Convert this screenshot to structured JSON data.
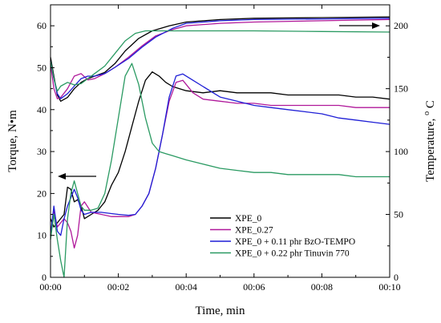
{
  "chart_data": {
    "type": "line",
    "xlabel": "Time, min",
    "ylabel_left": "Torque, N•m",
    "ylabel_right_main": "Temperature, ",
    "ylabel_right_sup": "o",
    "ylabel_right_unit": "C",
    "xlim_min": [
      0,
      10
    ],
    "ylim_left": [
      0,
      65
    ],
    "ylim_right": [
      0,
      216.7
    ],
    "x_tick_values": [
      0,
      2,
      4,
      6,
      8,
      10
    ],
    "x_tick_labels": [
      "00:00",
      "00:02",
      "00:04",
      "00:06",
      "00:08",
      "00:10"
    ],
    "y_left_ticks": [
      0,
      10,
      20,
      30,
      40,
      50,
      60
    ],
    "y_right_ticks": [
      0,
      50,
      100,
      150,
      200
    ],
    "legend_position": "lower-right",
    "series": [
      {
        "name": "XPE_0",
        "color": "#000000",
        "axis": "left",
        "quantity": "torque",
        "points": [
          [
            0,
            14
          ],
          [
            0.1,
            12
          ],
          [
            0.2,
            13
          ],
          [
            0.4,
            15
          ],
          [
            0.5,
            21.5
          ],
          [
            0.6,
            21
          ],
          [
            0.7,
            18
          ],
          [
            0.8,
            18.5
          ],
          [
            0.9,
            17
          ],
          [
            1.0,
            14
          ],
          [
            1.2,
            15
          ],
          [
            1.4,
            16
          ],
          [
            1.6,
            18
          ],
          [
            1.8,
            22
          ],
          [
            2.0,
            25
          ],
          [
            2.2,
            30
          ],
          [
            2.4,
            36
          ],
          [
            2.6,
            42
          ],
          [
            2.8,
            47
          ],
          [
            3.0,
            49
          ],
          [
            3.2,
            48
          ],
          [
            3.4,
            46.5
          ],
          [
            3.6,
            45.5
          ],
          [
            3.8,
            45
          ],
          [
            4.0,
            44.5
          ],
          [
            4.5,
            44
          ],
          [
            5.0,
            44.5
          ],
          [
            5.5,
            44
          ],
          [
            6,
            44
          ],
          [
            6.5,
            44
          ],
          [
            7,
            43.5
          ],
          [
            7.5,
            43.5
          ],
          [
            8,
            43.5
          ],
          [
            8.5,
            43.5
          ],
          [
            9,
            43
          ],
          [
            9.5,
            43
          ],
          [
            10,
            42.5
          ]
        ]
      },
      {
        "name": "XPE_0.27",
        "color": "#b0189a",
        "axis": "left",
        "quantity": "torque",
        "points": [
          [
            0,
            10
          ],
          [
            0.1,
            16
          ],
          [
            0.2,
            12
          ],
          [
            0.3,
            13
          ],
          [
            0.4,
            14
          ],
          [
            0.5,
            13
          ],
          [
            0.6,
            11
          ],
          [
            0.7,
            7
          ],
          [
            0.8,
            10
          ],
          [
            0.9,
            17
          ],
          [
            1.0,
            18
          ],
          [
            1.2,
            15.5
          ],
          [
            1.5,
            15
          ],
          [
            1.8,
            14.5
          ],
          [
            2.0,
            14.5
          ],
          [
            2.3,
            14.5
          ],
          [
            2.5,
            15
          ],
          [
            2.7,
            17
          ],
          [
            2.9,
            20
          ],
          [
            3.1,
            26
          ],
          [
            3.3,
            34
          ],
          [
            3.5,
            42
          ],
          [
            3.7,
            46.5
          ],
          [
            3.9,
            47
          ],
          [
            4.2,
            44
          ],
          [
            4.5,
            42.5
          ],
          [
            5.0,
            42
          ],
          [
            5.5,
            41.5
          ],
          [
            6,
            41.5
          ],
          [
            6.5,
            41
          ],
          [
            7,
            41
          ],
          [
            7.5,
            41
          ],
          [
            8,
            41
          ],
          [
            8.5,
            41
          ],
          [
            9,
            40.5
          ],
          [
            9.5,
            40.5
          ],
          [
            10,
            40.5
          ]
        ]
      },
      {
        "name": "XPE_0 + 0.11 phr BzO-TEMPO",
        "color": "#1f1fd6",
        "axis": "left",
        "quantity": "torque",
        "points": [
          [
            0,
            10
          ],
          [
            0.1,
            17
          ],
          [
            0.2,
            11
          ],
          [
            0.3,
            10
          ],
          [
            0.4,
            14
          ],
          [
            0.5,
            17
          ],
          [
            0.6,
            19
          ],
          [
            0.7,
            21
          ],
          [
            0.8,
            19
          ],
          [
            0.9,
            16
          ],
          [
            1.0,
            15
          ],
          [
            1.2,
            15.5
          ],
          [
            1.5,
            15.5
          ],
          [
            1.8,
            15.2
          ],
          [
            2.0,
            15
          ],
          [
            2.3,
            14.8
          ],
          [
            2.5,
            15
          ],
          [
            2.7,
            17
          ],
          [
            2.9,
            20
          ],
          [
            3.1,
            26
          ],
          [
            3.3,
            34
          ],
          [
            3.5,
            43
          ],
          [
            3.7,
            48
          ],
          [
            3.9,
            48.5
          ],
          [
            4.2,
            47
          ],
          [
            4.5,
            45.5
          ],
          [
            5.0,
            43
          ],
          [
            5.5,
            42
          ],
          [
            6,
            41
          ],
          [
            6.5,
            40.5
          ],
          [
            7,
            40
          ],
          [
            7.5,
            39.5
          ],
          [
            8,
            39
          ],
          [
            8.5,
            38
          ],
          [
            9,
            37.5
          ],
          [
            9.5,
            37
          ],
          [
            10,
            36.5
          ]
        ]
      },
      {
        "name": "XPE_0 + 0.22 phr Tinuvin 770",
        "color": "#2a9a62",
        "axis": "left",
        "quantity": "torque",
        "points": [
          [
            0,
            9
          ],
          [
            0.1,
            15
          ],
          [
            0.2,
            9
          ],
          [
            0.3,
            4
          ],
          [
            0.4,
            0
          ],
          [
            0.5,
            14
          ],
          [
            0.6,
            20
          ],
          [
            0.7,
            23
          ],
          [
            0.8,
            20
          ],
          [
            0.9,
            17
          ],
          [
            1.0,
            16
          ],
          [
            1.2,
            16
          ],
          [
            1.4,
            16.5
          ],
          [
            1.6,
            20
          ],
          [
            1.8,
            28
          ],
          [
            2.0,
            38
          ],
          [
            2.2,
            48
          ],
          [
            2.4,
            51
          ],
          [
            2.6,
            46
          ],
          [
            2.8,
            38
          ],
          [
            3.0,
            32
          ],
          [
            3.2,
            30
          ],
          [
            3.4,
            29.5
          ],
          [
            3.6,
            29
          ],
          [
            3.8,
            28.5
          ],
          [
            4.0,
            28
          ],
          [
            4.5,
            27
          ],
          [
            5,
            26
          ],
          [
            5.5,
            25.5
          ],
          [
            6,
            25
          ],
          [
            6.5,
            25
          ],
          [
            7,
            24.5
          ],
          [
            7.5,
            24.5
          ],
          [
            8,
            24.5
          ],
          [
            8.5,
            24.5
          ],
          [
            9,
            24
          ],
          [
            9.5,
            24
          ],
          [
            10,
            24
          ]
        ]
      },
      {
        "name": "XPE_0 temperature",
        "color": "#000000",
        "axis": "right",
        "quantity": "temperature",
        "points": [
          [
            0,
            175
          ],
          [
            0.1,
            160
          ],
          [
            0.2,
            145
          ],
          [
            0.3,
            140
          ],
          [
            0.5,
            143
          ],
          [
            0.7,
            150
          ],
          [
            0.9,
            155
          ],
          [
            1.1,
            158
          ],
          [
            1.3,
            160
          ],
          [
            1.6,
            163
          ],
          [
            1.9,
            170
          ],
          [
            2.2,
            180
          ],
          [
            2.6,
            190
          ],
          [
            3.0,
            196
          ],
          [
            3.5,
            200
          ],
          [
            4.0,
            203
          ],
          [
            5,
            205
          ],
          [
            6,
            206
          ],
          [
            8,
            206.5
          ],
          [
            10,
            207
          ]
        ]
      },
      {
        "name": "XPE_0.27 temperature",
        "color": "#b0189a",
        "axis": "right",
        "quantity": "temperature",
        "points": [
          [
            0,
            170
          ],
          [
            0.1,
            150
          ],
          [
            0.2,
            142
          ],
          [
            0.3,
            143
          ],
          [
            0.5,
            150
          ],
          [
            0.7,
            160
          ],
          [
            0.9,
            162
          ],
          [
            1.1,
            157
          ],
          [
            1.3,
            158
          ],
          [
            1.6,
            162
          ],
          [
            1.9,
            167
          ],
          [
            2.3,
            175
          ],
          [
            2.7,
            184
          ],
          [
            3.1,
            192
          ],
          [
            3.6,
            197
          ],
          [
            4.0,
            200
          ],
          [
            5,
            202
          ],
          [
            6,
            203
          ],
          [
            8,
            204
          ],
          [
            10,
            205
          ]
        ]
      },
      {
        "name": "XPE_0 + 0.11 phr BzO-TEMPO temperature",
        "color": "#1f1fd6",
        "axis": "right",
        "quantity": "temperature",
        "points": [
          [
            0,
            172
          ],
          [
            0.1,
            158
          ],
          [
            0.2,
            146
          ],
          [
            0.3,
            142
          ],
          [
            0.5,
            146
          ],
          [
            0.7,
            152
          ],
          [
            0.9,
            158
          ],
          [
            1.1,
            160
          ],
          [
            1.3,
            160
          ],
          [
            1.6,
            162
          ],
          [
            1.9,
            167
          ],
          [
            2.3,
            174
          ],
          [
            2.7,
            183
          ],
          [
            3.1,
            191
          ],
          [
            3.6,
            198
          ],
          [
            4.0,
            202
          ],
          [
            5,
            204
          ],
          [
            6,
            205
          ],
          [
            8,
            205.5
          ],
          [
            10,
            206
          ]
        ]
      },
      {
        "name": "XPE_0 + 0.22 phr Tinuvin 770 temperature",
        "color": "#2a9a62",
        "axis": "right",
        "quantity": "temperature",
        "points": [
          [
            0,
            172
          ],
          [
            0.1,
            158
          ],
          [
            0.2,
            148
          ],
          [
            0.3,
            152
          ],
          [
            0.5,
            155
          ],
          [
            0.7,
            153
          ],
          [
            0.9,
            154
          ],
          [
            1.1,
            158
          ],
          [
            1.3,
            162
          ],
          [
            1.6,
            168
          ],
          [
            1.9,
            178
          ],
          [
            2.2,
            188
          ],
          [
            2.5,
            194
          ],
          [
            2.8,
            196
          ],
          [
            3.2,
            196
          ],
          [
            4,
            196
          ],
          [
            5,
            196
          ],
          [
            6,
            196
          ],
          [
            8,
            195.5
          ],
          [
            10,
            195
          ]
        ]
      }
    ],
    "annotations": [
      "left-arrow marks torque curves (left axis)",
      "right-arrow marks temperature curves (right axis)"
    ]
  }
}
